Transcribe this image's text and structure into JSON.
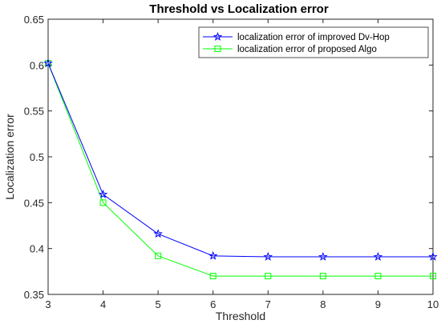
{
  "chart_data": {
    "type": "line",
    "title": "Threshold vs Localization error",
    "xlabel": "Threshold",
    "ylabel": "Localization error",
    "xlim": [
      3,
      10
    ],
    "ylim": [
      0.35,
      0.65
    ],
    "xticks": [
      3,
      4,
      5,
      6,
      7,
      8,
      9,
      10
    ],
    "yticks": [
      0.35,
      0.4,
      0.45,
      0.5,
      0.55,
      0.6,
      0.65
    ],
    "xtick_labels": [
      "3",
      "4",
      "5",
      "6",
      "7",
      "8",
      "9",
      "10"
    ],
    "ytick_labels": [
      "0.35",
      "0.4",
      "0.45",
      "0.5",
      "0.55",
      "0.6",
      "0.65"
    ],
    "grid": false,
    "legend_position": "top-right",
    "x": [
      3,
      4,
      5,
      6,
      7,
      8,
      9,
      10
    ],
    "series": [
      {
        "name": "localization error of improved Dv-Hop",
        "values": [
          0.602,
          0.459,
          0.416,
          0.392,
          0.391,
          0.391,
          0.391,
          0.391
        ],
        "color": "#0000ff",
        "marker": "star"
      },
      {
        "name": "localization error of proposed Algo",
        "values": [
          0.602,
          0.45,
          0.392,
          0.37,
          0.37,
          0.37,
          0.37,
          0.37
        ],
        "color": "#00ff00",
        "marker": "square"
      }
    ]
  }
}
